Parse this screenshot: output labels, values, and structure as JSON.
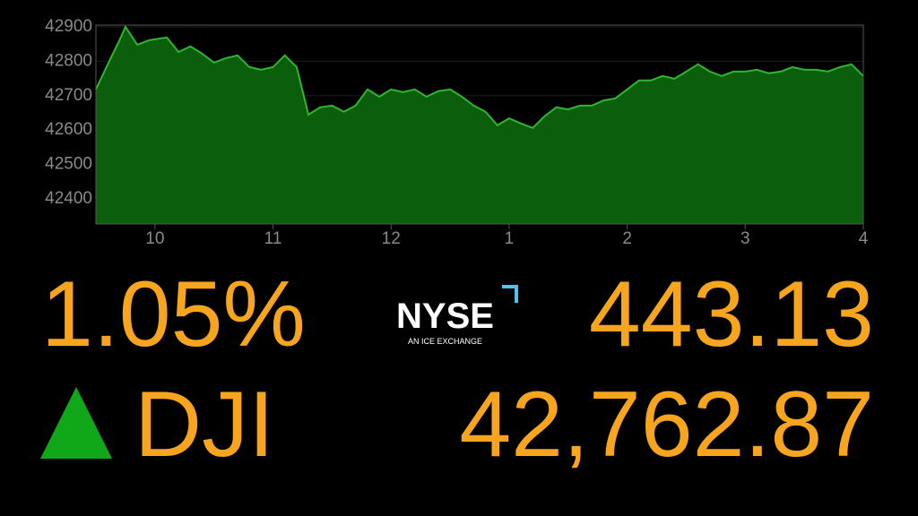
{
  "chart_data": {
    "type": "area",
    "x": [
      9.5,
      9.6,
      9.7,
      9.75,
      9.85,
      9.95,
      10.1,
      10.2,
      10.3,
      10.4,
      10.5,
      10.6,
      10.7,
      10.8,
      10.9,
      11.0,
      11.1,
      11.2,
      11.3,
      11.4,
      11.5,
      11.6,
      11.7,
      11.8,
      11.9,
      12.0,
      12.1,
      12.2,
      12.3,
      12.4,
      12.5,
      12.6,
      12.7,
      12.8,
      12.9,
      13.0,
      13.1,
      13.2,
      13.3,
      13.4,
      13.5,
      13.6,
      13.7,
      13.8,
      13.9,
      14.0,
      14.1,
      14.2,
      14.3,
      14.4,
      14.5,
      14.6,
      14.7,
      14.8,
      14.9,
      15.0,
      15.1,
      15.2,
      15.3,
      15.4,
      15.5,
      15.6,
      15.7,
      15.8,
      15.9,
      16.0
    ],
    "values": [
      42718,
      42791,
      42861,
      42900,
      42848,
      42861,
      42869,
      42827,
      42843,
      42822,
      42796,
      42809,
      42817,
      42783,
      42775,
      42783,
      42817,
      42783,
      42645,
      42666,
      42671,
      42653,
      42671,
      42718,
      42697,
      42718,
      42710,
      42718,
      42697,
      42713,
      42718,
      42697,
      42671,
      42653,
      42614,
      42634,
      42619,
      42606,
      42640,
      42666,
      42660,
      42671,
      42671,
      42686,
      42692,
      42718,
      42744,
      42744,
      42757,
      42749,
      42770,
      42791,
      42770,
      42757,
      42770,
      42770,
      42775,
      42765,
      42770,
      42783,
      42775,
      42775,
      42770,
      42783,
      42791,
      42757
    ],
    "color": "#0b5e0b",
    "line_color": "#2fb52f",
    "xlim": [
      9.5,
      16
    ],
    "ylim": [
      42327,
      42905
    ],
    "xticks": [
      10,
      11,
      12,
      {
        "value": 13,
        "label": "1"
      },
      {
        "value": 14,
        "label": "2"
      },
      {
        "value": 15,
        "label": "3"
      },
      {
        "value": 16,
        "label": "4"
      }
    ],
    "yticks": [
      42400,
      42500,
      42600,
      42700,
      42800,
      42900
    ],
    "grid": true
  },
  "ticker": {
    "change": "1.05%",
    "points": "443.13",
    "symbol": "DJI",
    "price": "42,762.87",
    "logo": "NYSE",
    "logo_tagline": "AN ICE EXCHANGE"
  }
}
